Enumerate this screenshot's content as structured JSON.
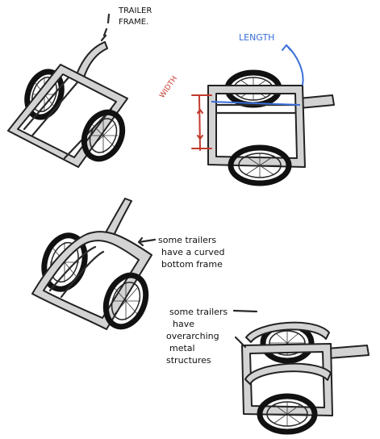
{
  "labels": {
    "trailer_frame_line1": "TRAILER",
    "trailer_frame_line2": "FRAME.",
    "length": "LENGTH",
    "width": "WIDTH",
    "curved_note_line1": "some trailers",
    "curved_note_line2": "have a curved",
    "curved_note_line3": "bottom frame",
    "overarch_note_line1": "some trailers",
    "overarch_note_line2": "have",
    "overarch_note_line3": "overarching",
    "overarch_note_line4": "metal",
    "overarch_note_line5": "structures"
  },
  "colors": {
    "ink": "#222222",
    "frame_fill": "#d3d3d3",
    "length_blue": "#3a6fd8",
    "width_red": "#c23a2e"
  }
}
